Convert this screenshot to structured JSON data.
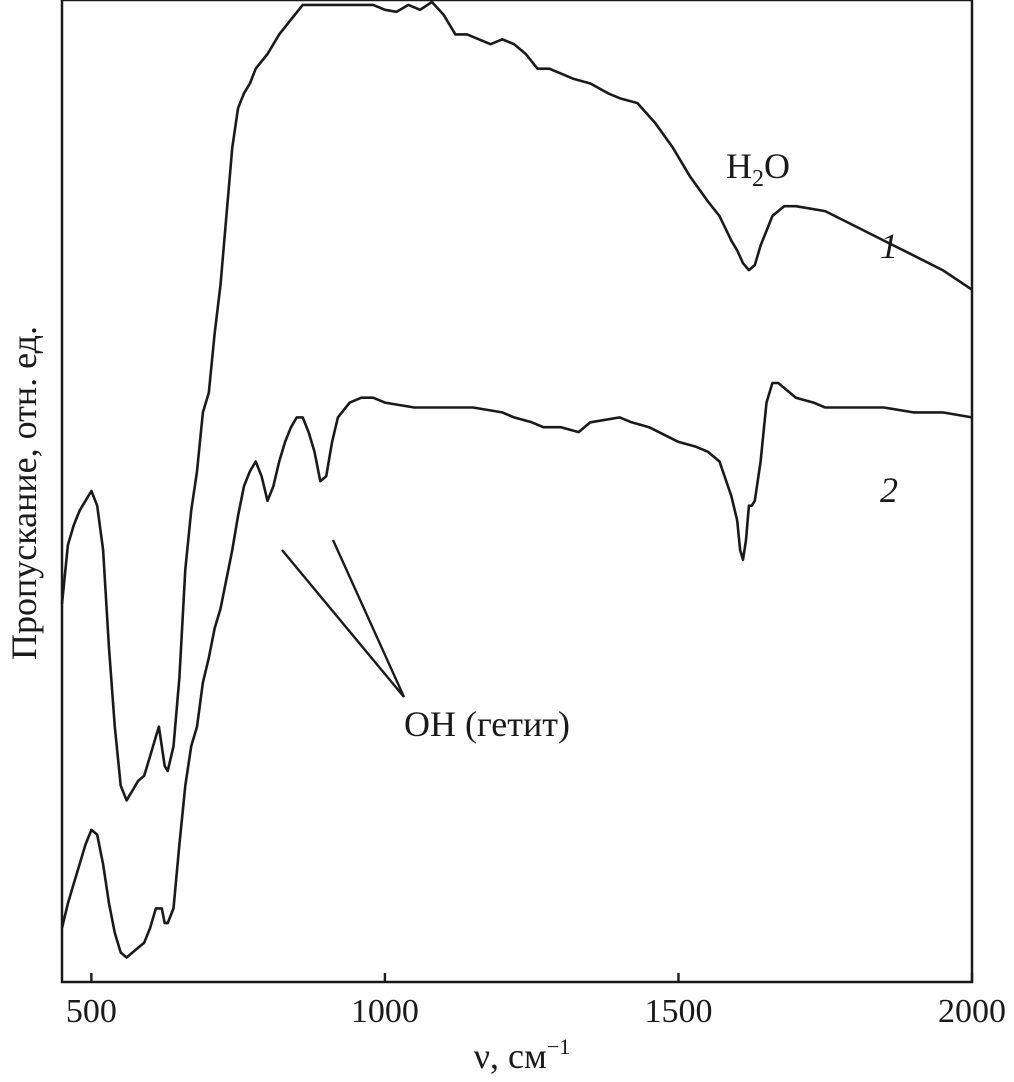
{
  "chart_data": {
    "type": "line",
    "title": "",
    "xlabel": "ν, см",
    "xlabel_superscript": "−1",
    "ylabel": "Пропускание, отн. ед.",
    "xlim": [
      450,
      2000
    ],
    "ylim": [
      0,
      100
    ],
    "xticks": [
      500,
      1000,
      1500,
      2000
    ],
    "yticks": [],
    "grid": false,
    "legend": "none",
    "series": [
      {
        "name": "1",
        "x": [
          450,
          460,
          470,
          480,
          490,
          500,
          510,
          520,
          530,
          540,
          550,
          560,
          570,
          580,
          590,
          600,
          610,
          615,
          620,
          625,
          630,
          640,
          650,
          660,
          670,
          680,
          690,
          700,
          710,
          720,
          730,
          740,
          750,
          760,
          770,
          780,
          800,
          820,
          840,
          860,
          880,
          900,
          920,
          940,
          960,
          980,
          1000,
          1020,
          1040,
          1060,
          1080,
          1100,
          1120,
          1140,
          1160,
          1180,
          1200,
          1220,
          1240,
          1260,
          1280,
          1300,
          1320,
          1350,
          1380,
          1400,
          1430,
          1460,
          1490,
          1520,
          1550,
          1570,
          1590,
          1600,
          1610,
          1620,
          1630,
          1640,
          1660,
          1680,
          1700,
          1750,
          1800,
          1850,
          1900,
          1950,
          2000
        ],
        "values": [
          38.5,
          44.5,
          46.5,
          48,
          49,
          50,
          48.5,
          44,
          34,
          26,
          20,
          18.5,
          19.5,
          20.5,
          21,
          23,
          25,
          26,
          24,
          22,
          21.5,
          24,
          31,
          42,
          48,
          52,
          58,
          60,
          66,
          71,
          78,
          85,
          89,
          90.5,
          91.5,
          93,
          94.5,
          96.5,
          98,
          99.5,
          99.5,
          99.5,
          99.5,
          99.5,
          99.5,
          99.5,
          99,
          98.8,
          99.5,
          99,
          99.8,
          98.5,
          96.5,
          96.5,
          96,
          95.5,
          96,
          95.5,
          94.5,
          93,
          93,
          92.5,
          92,
          91.5,
          90.5,
          90,
          89.5,
          87.5,
          85,
          82,
          79.5,
          78,
          75.5,
          74.5,
          73.2,
          72.5,
          73,
          75,
          78,
          79,
          79,
          78.5,
          77,
          75.5,
          74,
          72.5,
          70.5
        ]
      },
      {
        "name": "2",
        "x": [
          450,
          460,
          470,
          480,
          490,
          500,
          510,
          520,
          530,
          540,
          550,
          560,
          570,
          580,
          590,
          600,
          610,
          615,
          620,
          625,
          630,
          640,
          650,
          660,
          670,
          680,
          690,
          700,
          710,
          720,
          730,
          740,
          750,
          760,
          770,
          780,
          790,
          800,
          810,
          820,
          830,
          840,
          850,
          860,
          870,
          880,
          890,
          900,
          910,
          920,
          940,
          960,
          980,
          1000,
          1050,
          1100,
          1150,
          1200,
          1220,
          1250,
          1270,
          1300,
          1330,
          1350,
          1400,
          1420,
          1450,
          1500,
          1530,
          1550,
          1570,
          1590,
          1600,
          1605,
          1610,
          1615,
          1620,
          1625,
          1630,
          1640,
          1650,
          1660,
          1670,
          1680,
          1700,
          1730,
          1750,
          1800,
          1850,
          1900,
          1950,
          2000
        ],
        "values": [
          5.5,
          8,
          10,
          12,
          14,
          15.5,
          15,
          12,
          8,
          5,
          3,
          2.5,
          3,
          3.5,
          4,
          5.5,
          7.5,
          7.5,
          7.5,
          6,
          6,
          7.5,
          14,
          20,
          24,
          26,
          30.5,
          33,
          36,
          38,
          41,
          44,
          47.5,
          50.5,
          52,
          53,
          51.5,
          49,
          50.5,
          53,
          55,
          56.5,
          57.5,
          57.5,
          56,
          54,
          51,
          51.5,
          55,
          57.5,
          59,
          59.5,
          59.5,
          59,
          58.5,
          58.5,
          58.5,
          58,
          57.5,
          57,
          56.5,
          56.5,
          56,
          57,
          57.5,
          57,
          56.5,
          55,
          54.5,
          54,
          53,
          49.5,
          47,
          44,
          43,
          45,
          48.5,
          48.5,
          49,
          53,
          59,
          61,
          61,
          60.5,
          59.5,
          59,
          58.5,
          58.5,
          58.5,
          58,
          58,
          57.5
        ]
      }
    ],
    "annotations": [
      {
        "text": "H₂O",
        "x": 1640,
        "y": 85
      },
      {
        "text": "1",
        "x": 1875,
        "y": 78
      },
      {
        "text": "2",
        "x": 1875,
        "y": 56.5
      },
      {
        "text": "OH (гетит)",
        "x": 1000,
        "y": 31.5,
        "points_to": [
          [
            820,
            50
          ],
          [
            905,
            51
          ]
        ]
      }
    ]
  }
}
